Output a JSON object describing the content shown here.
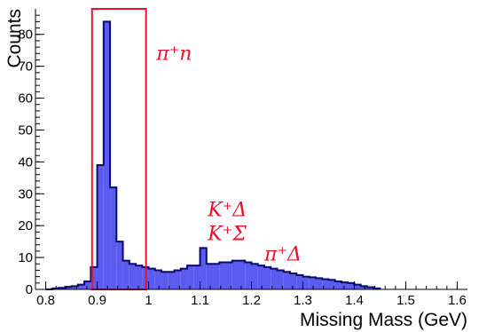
{
  "chart_data": {
    "type": "histogram",
    "xlabel": "Missing Mass (GeV)",
    "ylabel": "Counts",
    "xlim": [
      0.78,
      1.62
    ],
    "ylim": [
      0,
      88
    ],
    "bin_width": 0.0125,
    "x_start": 0.8,
    "x_ticks": [
      "0.8",
      "0.9",
      "1",
      "1.1",
      "1.2",
      "1.3",
      "1.4",
      "1.5",
      "1.6"
    ],
    "y_ticks": [
      "0",
      "10",
      "20",
      "30",
      "40",
      "50",
      "60",
      "70",
      "80"
    ],
    "counts": [
      0,
      0.3,
      0.5,
      0.8,
      1.0,
      1.5,
      2.5,
      7,
      39,
      84,
      32,
      15,
      9,
      8,
      7.5,
      7,
      6.5,
      6,
      5.5,
      5.5,
      6,
      6.5,
      7.5,
      7.5,
      13,
      8,
      8,
      8.5,
      8.5,
      9,
      9,
      8.5,
      8,
      7.5,
      7,
      6.5,
      6,
      5.5,
      5,
      4.5,
      4,
      3.8,
      3.5,
      3.2,
      3,
      2.5,
      2.2,
      2,
      1.5,
      1.0,
      0.7,
      0.3
    ],
    "fill_color": "#5b5bef",
    "line_color": "#0b0b6e",
    "selection_box": {
      "x0": 0.89,
      "x1": 0.995,
      "y0": 0,
      "y1": 88,
      "color": "#e8102a"
    },
    "annotations": [
      {
        "text": "π⁺n",
        "x": 1.015,
        "y": 72
      },
      {
        "text": "K⁺Δ",
        "x": 1.115,
        "y": 23
      },
      {
        "text": "K⁺Σ",
        "x": 1.115,
        "y": 15.5
      },
      {
        "text": "π⁺Δ",
        "x": 1.225,
        "y": 9
      }
    ]
  }
}
